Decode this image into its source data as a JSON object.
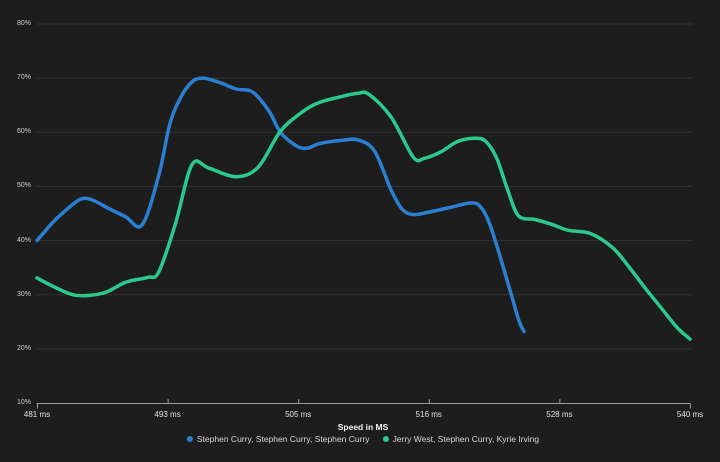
{
  "chart_data": {
    "type": "line",
    "xlabel": "Speed in MS",
    "ylabel": "",
    "xlim": [
      481,
      540
    ],
    "ylim": [
      10,
      80
    ],
    "grid": true,
    "legend_position": "bottom-center",
    "x_tick_labels": [
      "481 ms",
      "493 ms",
      "505 ms",
      "516 ms",
      "528 ms",
      "540 ms"
    ],
    "y_tick_labels": [
      "80%",
      "70%",
      "60%",
      "50%",
      "40%",
      "30%",
      "20%",
      "10%"
    ],
    "colors": {
      "background": "#1d1d1d",
      "gridline": "#323232",
      "axis_line": "#9b9b9b",
      "x_tick_text": "#e3e3e3",
      "y_tick_text": "#cfcfcf",
      "axis_title_text": "#f2f2f2",
      "legend_text": "#d8d8d8",
      "series_blue": "#2b7fd0",
      "series_green": "#2cc98e"
    },
    "series": [
      {
        "name": "Stephen Curry, Stephen Curry, Stephen Curry",
        "color": "#2b7fd0",
        "points": [
          [
            481,
            40
          ],
          [
            482.5,
            43.5
          ],
          [
            484,
            46.3
          ],
          [
            485,
            47.7
          ],
          [
            486,
            47.5
          ],
          [
            487.5,
            45.9
          ],
          [
            489,
            44.4
          ],
          [
            490.5,
            42.9
          ],
          [
            492,
            52
          ],
          [
            493,
            61.5
          ],
          [
            494,
            66.5
          ],
          [
            495,
            69.3
          ],
          [
            496,
            70
          ],
          [
            497.5,
            69.2
          ],
          [
            499,
            68
          ],
          [
            500.5,
            67.4
          ],
          [
            502,
            63.8
          ],
          [
            503,
            60
          ],
          [
            504.5,
            57.4
          ],
          [
            505.5,
            57.1
          ],
          [
            506.5,
            57.9
          ],
          [
            508.5,
            58.5
          ],
          [
            510,
            58.6
          ],
          [
            511.5,
            56.5
          ],
          [
            513,
            49.3
          ],
          [
            514,
            45.8
          ],
          [
            515,
            44.8
          ],
          [
            516.5,
            45.3
          ],
          [
            518.5,
            46.2
          ],
          [
            520,
            46.9
          ],
          [
            521,
            46.4
          ],
          [
            522,
            42.5
          ],
          [
            523.5,
            32.5
          ],
          [
            524.5,
            25.5
          ],
          [
            525,
            23.2
          ]
        ]
      },
      {
        "name": "Jerry West, Stephen Curry, Kyrie Irving",
        "color": "#2cc98e",
        "points": [
          [
            481,
            33.1
          ],
          [
            482.5,
            31.5
          ],
          [
            484.5,
            29.9
          ],
          [
            487,
            30.3
          ],
          [
            489,
            32.3
          ],
          [
            491,
            33.2
          ],
          [
            492,
            34.2
          ],
          [
            493.5,
            43
          ],
          [
            495,
            54
          ],
          [
            496.5,
            53.4
          ],
          [
            499,
            51.8
          ],
          [
            501,
            53.6
          ],
          [
            503,
            60.2
          ],
          [
            505,
            63.8
          ],
          [
            506.5,
            65.5
          ],
          [
            508.5,
            66.6
          ],
          [
            510,
            67.2
          ],
          [
            511,
            67
          ],
          [
            513,
            62.8
          ],
          [
            515,
            55.4
          ],
          [
            516,
            55.2
          ],
          [
            517.5,
            56.4
          ],
          [
            519,
            58.3
          ],
          [
            520.5,
            58.9
          ],
          [
            521.5,
            58.4
          ],
          [
            522.5,
            55.4
          ],
          [
            523.5,
            49.5
          ],
          [
            524.5,
            44.6
          ],
          [
            526,
            43.9
          ],
          [
            527.5,
            43
          ],
          [
            529,
            41.9
          ],
          [
            531,
            41.3
          ],
          [
            533,
            38.7
          ],
          [
            534.5,
            35.1
          ],
          [
            536,
            31.1
          ],
          [
            537.5,
            27.3
          ],
          [
            538.8,
            24
          ],
          [
            540,
            21.8
          ]
        ]
      }
    ]
  }
}
